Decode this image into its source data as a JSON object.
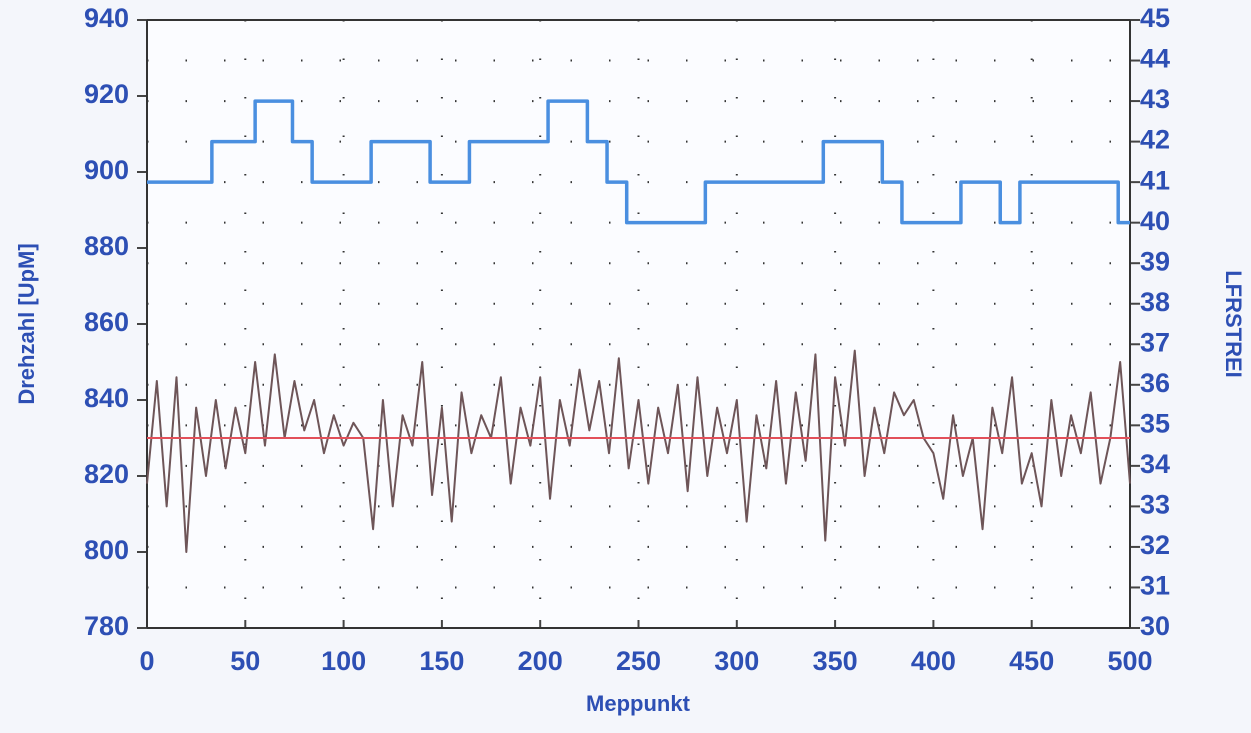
{
  "chart_data": {
    "type": "line",
    "x_label": "Meppunkt",
    "y_label": "Drehzahl [UpM]",
    "y2_label": "LFRSTREI",
    "xlim": [
      0,
      500
    ],
    "xticks": [
      0,
      50,
      100,
      150,
      200,
      250,
      300,
      350,
      400,
      450,
      500
    ],
    "ylim": [
      780,
      940
    ],
    "yticks": [
      780,
      800,
      820,
      840,
      860,
      880,
      900,
      920,
      940
    ],
    "y2lim": [
      30,
      45
    ],
    "y2ticks": [
      30,
      31,
      32,
      33,
      34,
      35,
      36,
      37,
      38,
      39,
      40,
      41,
      42,
      43,
      44,
      45
    ],
    "grid": true,
    "series": [
      {
        "color": "#6e5558",
        "axis": "y",
        "x": [
          0,
          5,
          10,
          15,
          20,
          25,
          30,
          35,
          40,
          45,
          50,
          55,
          60,
          65,
          70,
          75,
          80,
          85,
          90,
          95,
          100,
          105,
          110,
          115,
          120,
          125,
          130,
          135,
          140,
          145,
          150,
          155,
          160,
          165,
          170,
          175,
          180,
          185,
          190,
          195,
          200,
          205,
          210,
          215,
          220,
          225,
          230,
          235,
          240,
          245,
          250,
          255,
          260,
          265,
          270,
          275,
          280,
          285,
          290,
          295,
          300,
          305,
          310,
          315,
          320,
          325,
          330,
          335,
          340,
          345,
          350,
          355,
          360,
          365,
          370,
          375,
          380,
          385,
          390,
          395,
          400,
          405,
          410,
          415,
          420,
          425,
          430,
          435,
          440,
          445,
          450,
          455,
          460,
          465,
          470,
          475,
          480,
          485,
          490,
          495,
          500
        ],
        "values": [
          818,
          845,
          812,
          846,
          800,
          838,
          820,
          840,
          822,
          838,
          826,
          850,
          828,
          852,
          830,
          845,
          832,
          840,
          826,
          836,
          828,
          834,
          830,
          806,
          840,
          812,
          836,
          828,
          850,
          815,
          838,
          808,
          842,
          826,
          836,
          830,
          846,
          818,
          838,
          828,
          846,
          814,
          840,
          828,
          848,
          832,
          845,
          826,
          851,
          822,
          840,
          818,
          838,
          826,
          844,
          816,
          846,
          820,
          838,
          826,
          840,
          808,
          836,
          822,
          845,
          818,
          842,
          824,
          852,
          803,
          846,
          828,
          853,
          820,
          838,
          826,
          842,
          836,
          840,
          830,
          826,
          814,
          836,
          820,
          830,
          806,
          838,
          826,
          846,
          818,
          826,
          812,
          840,
          820,
          836,
          826,
          842,
          818,
          830,
          850,
          818
        ]
      },
      {
        "color": "#e2505a",
        "axis": "y",
        "x": [
          0,
          500
        ],
        "values": [
          830,
          830
        ]
      },
      {
        "color": "#4a8fe0",
        "axis": "y2",
        "step": true,
        "x": [
          0,
          33,
          55,
          74,
          84,
          114,
          144,
          164,
          204,
          224,
          234,
          244,
          284,
          344,
          374,
          384,
          414,
          434,
          444,
          494,
          500
        ],
        "values": [
          41,
          42,
          43,
          42,
          41,
          42,
          41,
          42,
          43,
          42,
          41,
          40,
          41,
          42,
          41,
          40,
          41,
          40,
          41,
          40,
          40
        ]
      }
    ]
  }
}
